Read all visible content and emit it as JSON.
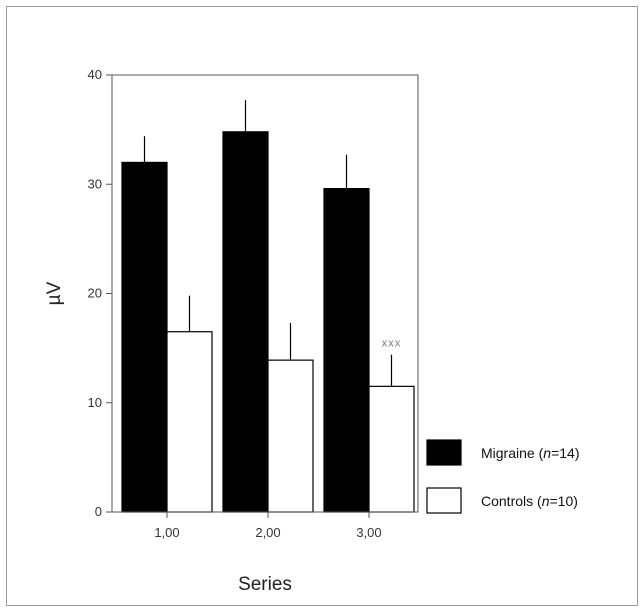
{
  "chart_data": {
    "type": "bar",
    "categories": [
      "1,00",
      "2,00",
      "3,00"
    ],
    "series": [
      {
        "name": "Migraine",
        "name_n": "n",
        "name_eq": "=14",
        "values": [
          32.0,
          34.8,
          29.6
        ],
        "errors": [
          2.4,
          2.9,
          3.1
        ],
        "color": "#000000"
      },
      {
        "name": "Controls",
        "name_n": "n",
        "name_eq": "=10",
        "values": [
          16.5,
          13.9,
          11.5
        ],
        "errors": [
          3.3,
          3.4,
          2.9
        ],
        "color": "#ffffff"
      }
    ],
    "xlabel": "Series",
    "ylabel": "µV",
    "ylim": [
      0,
      40
    ],
    "yticks": [
      "0",
      "10",
      "20",
      "30",
      "40"
    ],
    "annotations": [
      {
        "text": "xxx",
        "category": "3,00",
        "series": "Controls"
      }
    ],
    "legend_position": "right",
    "grid": false
  }
}
